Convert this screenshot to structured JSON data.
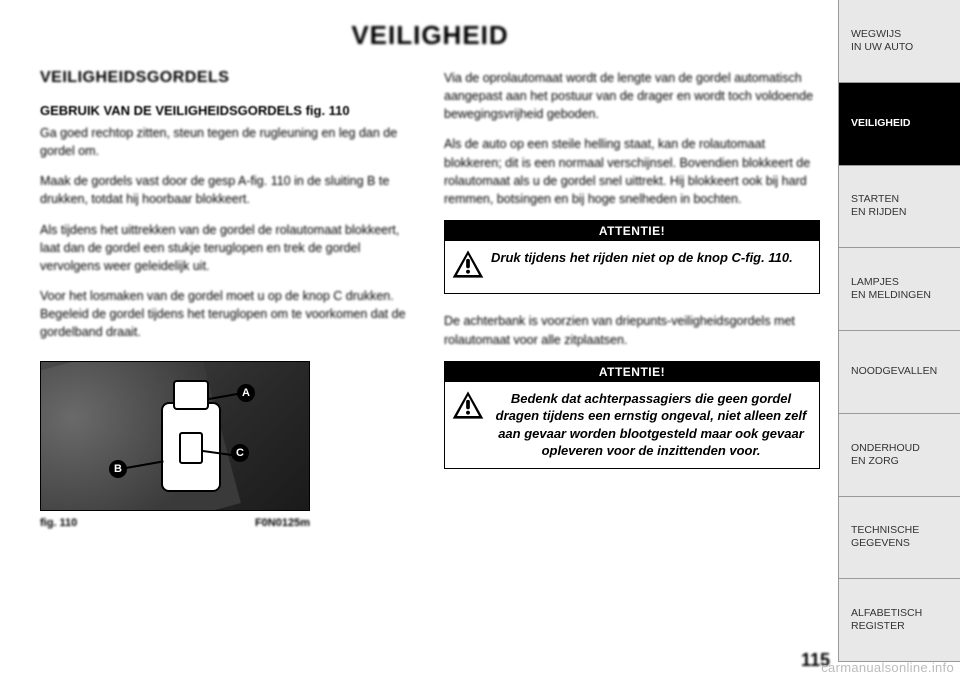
{
  "page": {
    "title": "VEILIGHEID",
    "number": "115"
  },
  "left_column": {
    "section_title": "VEILIGHEIDSGORDELS",
    "subhead": "GEBRUIK VAN DE VEILIGHEIDSGORDELS fig. 110",
    "para1": "Ga goed rechtop zitten, steun tegen de rugleuning en leg dan de gordel om.",
    "para2": "Maak de gordels vast door de gesp A-fig. 110 in de sluiting B te drukken, totdat hij hoorbaar blokkeert.",
    "para3": "Als tijdens het uittrekken van de gordel de rolautomaat blokkeert, laat dan de gordel een stukje teruglopen en trek de gordel vervolgens weer geleidelijk uit.",
    "para4": "Voor het losmaken van de gordel moet u op de knop C drukken. Begeleid de gordel tijdens het teruglopen om te voorkomen dat de gordelband draait."
  },
  "right_column": {
    "para1": "Via de oprolautomaat wordt de lengte van de gordel automatisch aangepast aan het postuur van de drager en wordt toch voldoende bewegingsvrijheid geboden.",
    "para2": "Als de auto op een steile helling staat, kan de rolautomaat blokkeren; dit is een normaal verschijnsel. Bovendien blokkeert de rolautomaat als u de gordel snel uittrekt. Hij blokkeert ook bij hard remmen, botsingen en bij hoge snelheden in bochten.",
    "warning1": {
      "title": "ATTENTIE!",
      "text": "Druk tijdens het rijden niet op de knop C-fig. 110."
    },
    "para3": "De achterbank is voorzien van driepunts-veiligheidsgordels met rolautomaat voor alle zitplaatsen.",
    "warning2": {
      "title": "ATTENTIE!",
      "text": "Bedenk dat achterpassagiers die geen gordel dragen tijdens een ernstig ongeval, niet alleen zelf aan gevaar worden blootgesteld maar ook gevaar opleveren voor de inzittenden voor."
    }
  },
  "figure": {
    "caption_left": "fig. 110",
    "caption_right": "F0N0125m",
    "labels": {
      "a": "A",
      "b": "B",
      "c": "C"
    }
  },
  "sidebar": {
    "items": [
      "WEGWIJS\nIN UW AUTO",
      "VEILIGHEID",
      "STARTEN\nEN RIJDEN",
      "LAMPJES\nEN MELDINGEN",
      "NOODGEVALLEN",
      "ONDERHOUD\nEN ZORG",
      "TECHNISCHE\nGEGEVENS",
      "ALFABETISCH\nREGISTER"
    ],
    "active_index": 1
  },
  "watermark": "carmanualsonline.info"
}
